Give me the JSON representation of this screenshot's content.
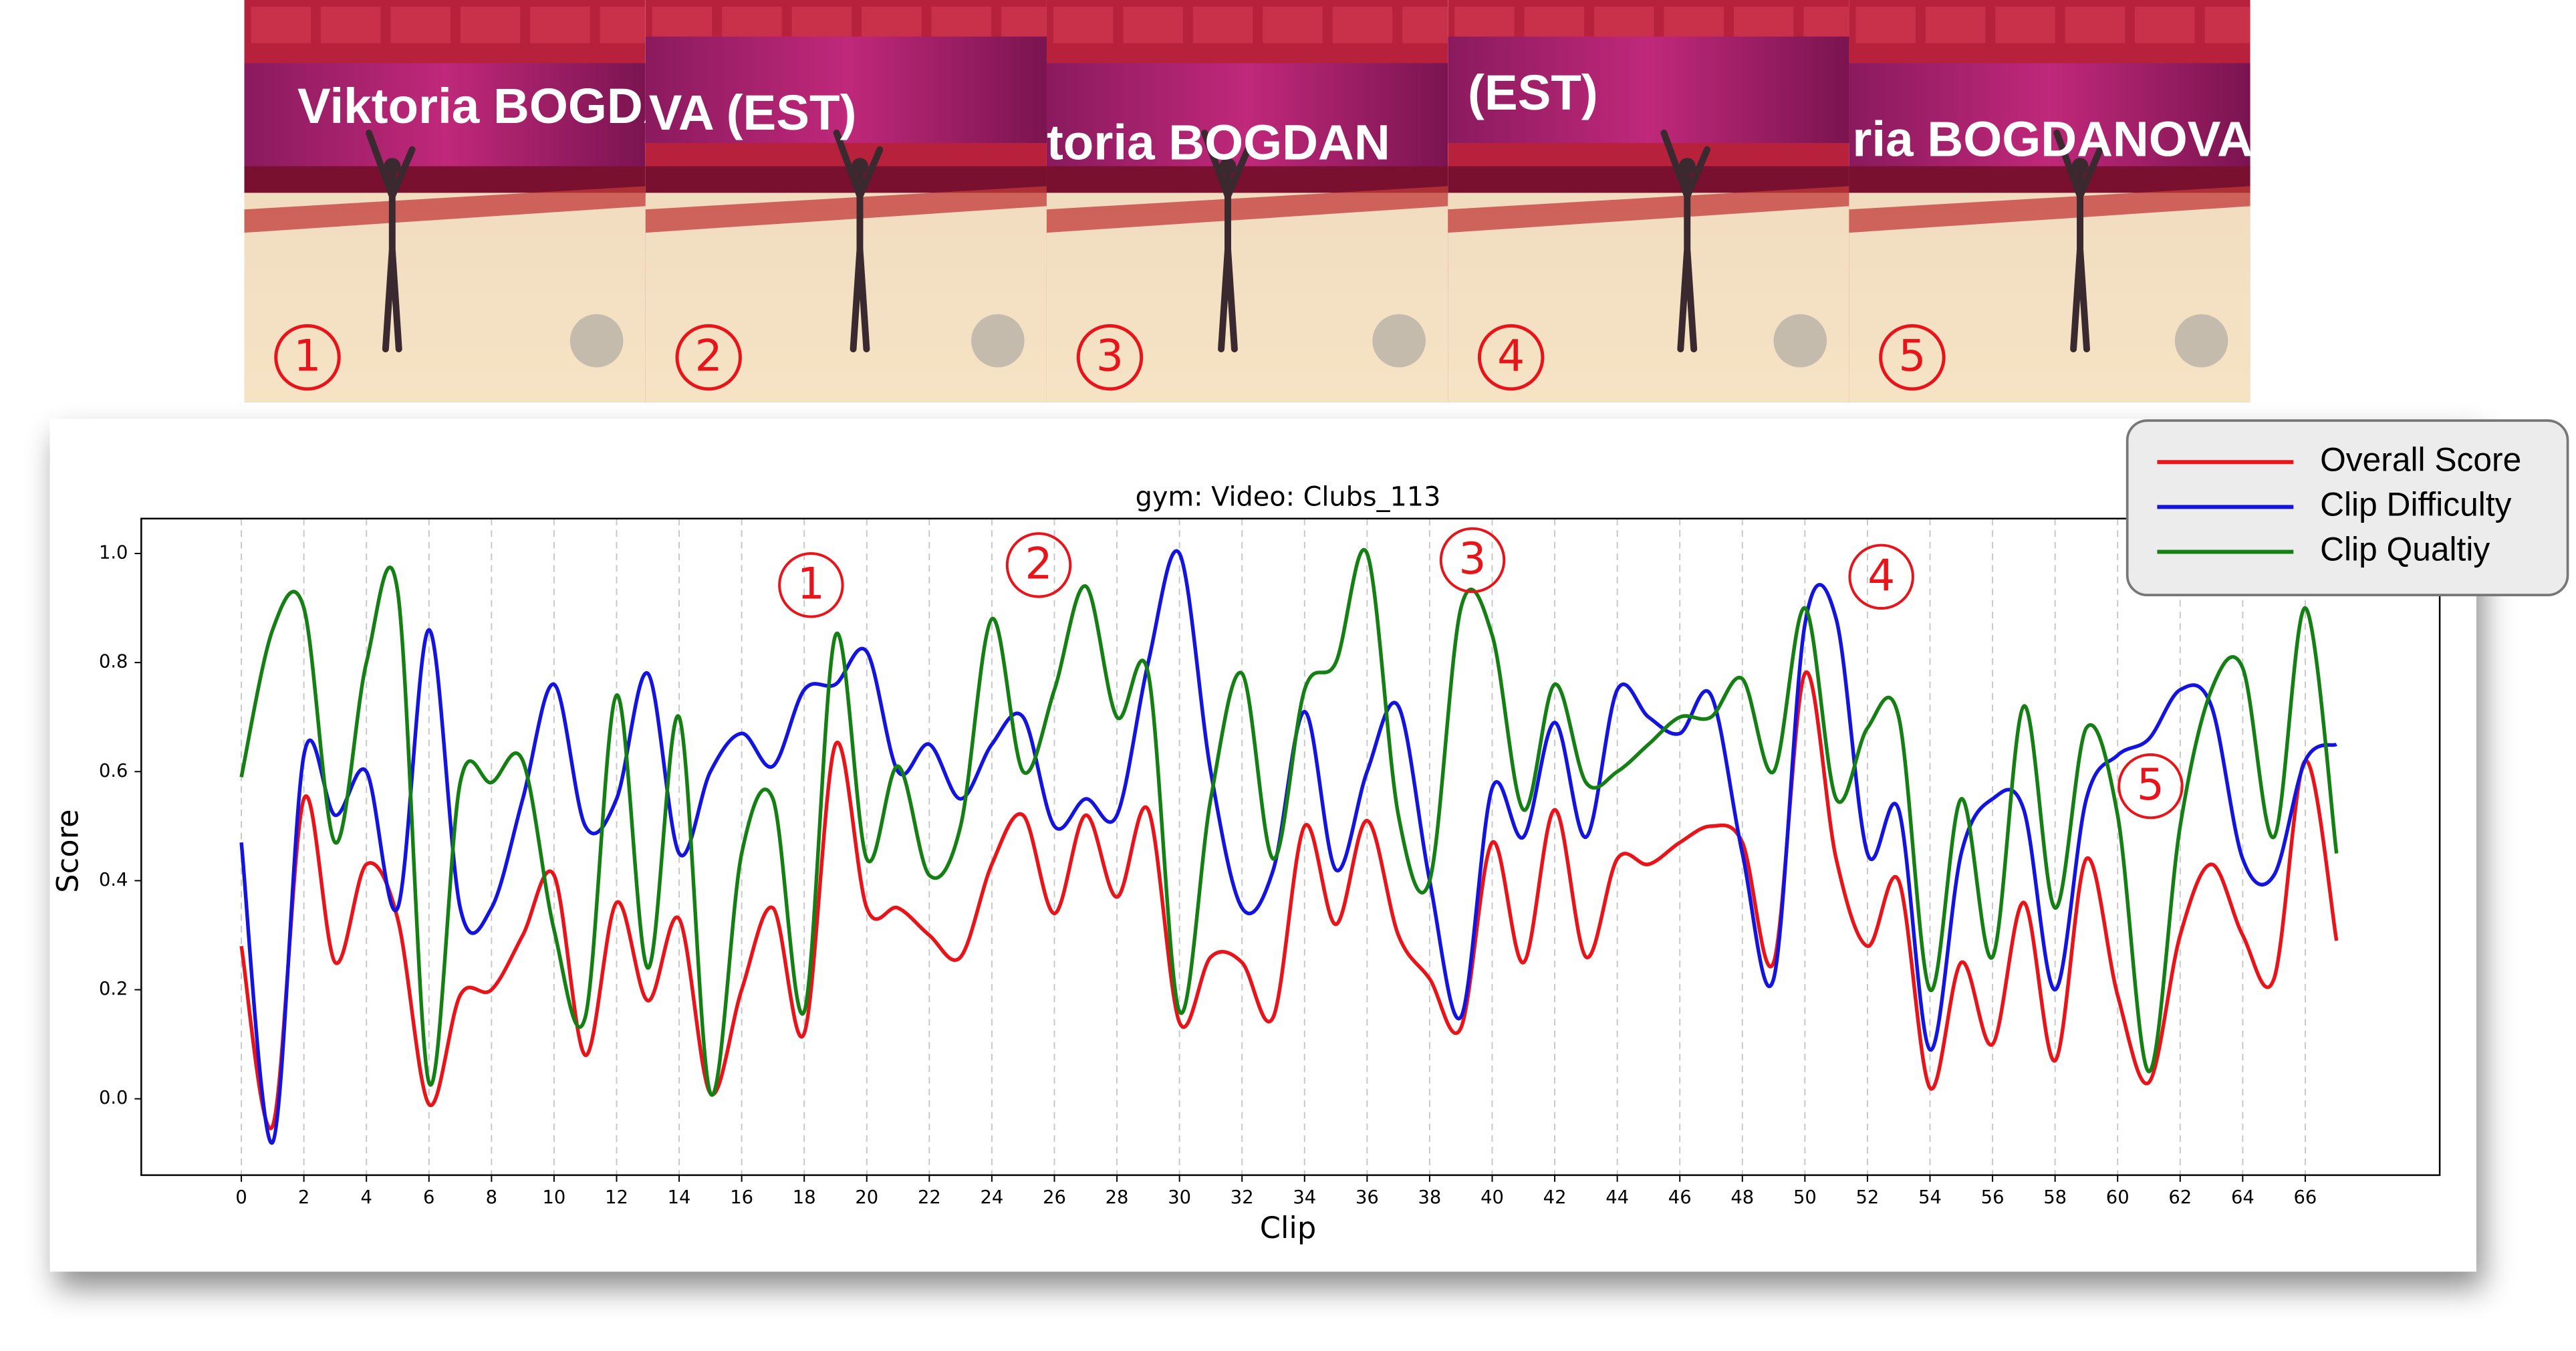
{
  "frames": [
    {
      "banner": "Viktoria BOGDANO",
      "number": "1"
    },
    {
      "banner": "VA (EST)",
      "number": "2"
    },
    {
      "banner": "toria BOGDAN",
      "number": "3"
    },
    {
      "banner": "(EST)",
      "number": "4"
    },
    {
      "banner": "ria BOGDANOVA",
      "number": "5"
    }
  ],
  "chart_data": {
    "type": "line",
    "title": "gym: Video: Clubs_113",
    "x_label": "Clip",
    "y_label": "Score",
    "x": [
      0,
      1,
      2,
      3,
      4,
      5,
      6,
      7,
      8,
      9,
      10,
      11,
      12,
      13,
      14,
      15,
      16,
      17,
      18,
      19,
      20,
      21,
      22,
      23,
      24,
      25,
      26,
      27,
      28,
      29,
      30,
      31,
      32,
      33,
      34,
      35,
      36,
      37,
      38,
      39,
      40,
      41,
      42,
      43,
      44,
      45,
      46,
      47,
      48,
      49,
      50,
      51,
      52,
      53,
      54,
      55,
      56,
      57,
      58,
      59,
      60,
      61,
      62,
      63,
      64,
      65,
      66,
      67
    ],
    "series": [
      {
        "name": "Overall Score",
        "color": "#e8141a",
        "values": [
          0.28,
          -0.05,
          0.55,
          0.25,
          0.43,
          0.33,
          -0.01,
          0.19,
          0.2,
          0.3,
          0.41,
          0.08,
          0.36,
          0.18,
          0.33,
          0.01,
          0.2,
          0.35,
          0.12,
          0.65,
          0.35,
          0.35,
          0.3,
          0.26,
          0.43,
          0.52,
          0.34,
          0.52,
          0.37,
          0.53,
          0.14,
          0.26,
          0.25,
          0.15,
          0.5,
          0.32,
          0.51,
          0.3,
          0.22,
          0.13,
          0.47,
          0.25,
          0.53,
          0.26,
          0.44,
          0.43,
          0.47,
          0.5,
          0.47,
          0.25,
          0.78,
          0.44,
          0.28,
          0.4,
          0.02,
          0.25,
          0.1,
          0.36,
          0.07,
          0.44,
          0.19,
          0.03,
          0.3,
          0.43,
          0.3,
          0.22,
          0.62,
          0.29
        ]
      },
      {
        "name": "Clip Difficulty",
        "color": "#1414e0",
        "values": [
          0.47,
          -0.08,
          0.63,
          0.52,
          0.6,
          0.35,
          0.86,
          0.35,
          0.35,
          0.55,
          0.76,
          0.5,
          0.55,
          0.78,
          0.45,
          0.6,
          0.67,
          0.61,
          0.75,
          0.76,
          0.82,
          0.6,
          0.65,
          0.55,
          0.65,
          0.7,
          0.5,
          0.55,
          0.52,
          0.8,
          1.0,
          0.6,
          0.35,
          0.42,
          0.71,
          0.42,
          0.6,
          0.72,
          0.4,
          0.15,
          0.57,
          0.48,
          0.69,
          0.48,
          0.75,
          0.7,
          0.67,
          0.74,
          0.45,
          0.22,
          0.87,
          0.88,
          0.45,
          0.53,
          0.09,
          0.45,
          0.55,
          0.53,
          0.2,
          0.55,
          0.63,
          0.66,
          0.75,
          0.72,
          0.44,
          0.41,
          0.62,
          0.65
        ]
      },
      {
        "name": "Clip Qualtiy",
        "color": "#148014",
        "values": [
          0.59,
          0.86,
          0.9,
          0.47,
          0.8,
          0.93,
          0.03,
          0.58,
          0.58,
          0.62,
          0.31,
          0.15,
          0.74,
          0.24,
          0.7,
          0.01,
          0.45,
          0.55,
          0.16,
          0.85,
          0.44,
          0.61,
          0.41,
          0.5,
          0.88,
          0.6,
          0.75,
          0.94,
          0.7,
          0.78,
          0.16,
          0.55,
          0.78,
          0.44,
          0.75,
          0.8,
          1.0,
          0.52,
          0.4,
          0.9,
          0.85,
          0.53,
          0.76,
          0.58,
          0.6,
          0.65,
          0.7,
          0.7,
          0.77,
          0.6,
          0.9,
          0.55,
          0.68,
          0.7,
          0.2,
          0.55,
          0.26,
          0.72,
          0.35,
          0.68,
          0.52,
          0.05,
          0.5,
          0.75,
          0.79,
          0.48,
          0.9,
          0.45
        ]
      }
    ],
    "xlim": [
      -3.2,
      70.3
    ],
    "ylim": [
      -0.14,
      1.064
    ],
    "xticks": [
      0,
      2,
      4,
      6,
      8,
      10,
      12,
      14,
      16,
      18,
      20,
      22,
      24,
      26,
      28,
      30,
      32,
      34,
      36,
      38,
      40,
      42,
      44,
      46,
      48,
      50,
      52,
      54,
      56,
      58,
      60,
      62,
      64,
      66
    ],
    "yticks": [
      {
        "value": 0,
        "label": "0.0"
      },
      0.2,
      0.4,
      0.6,
      0.8,
      {
        "value": 1,
        "label": "1.0"
      }
    ],
    "x_grid": true,
    "legend": "upper right",
    "annotations": [
      "1",
      "2",
      "3",
      "4",
      "5"
    ],
    "annotation_color": "#e8141a"
  }
}
